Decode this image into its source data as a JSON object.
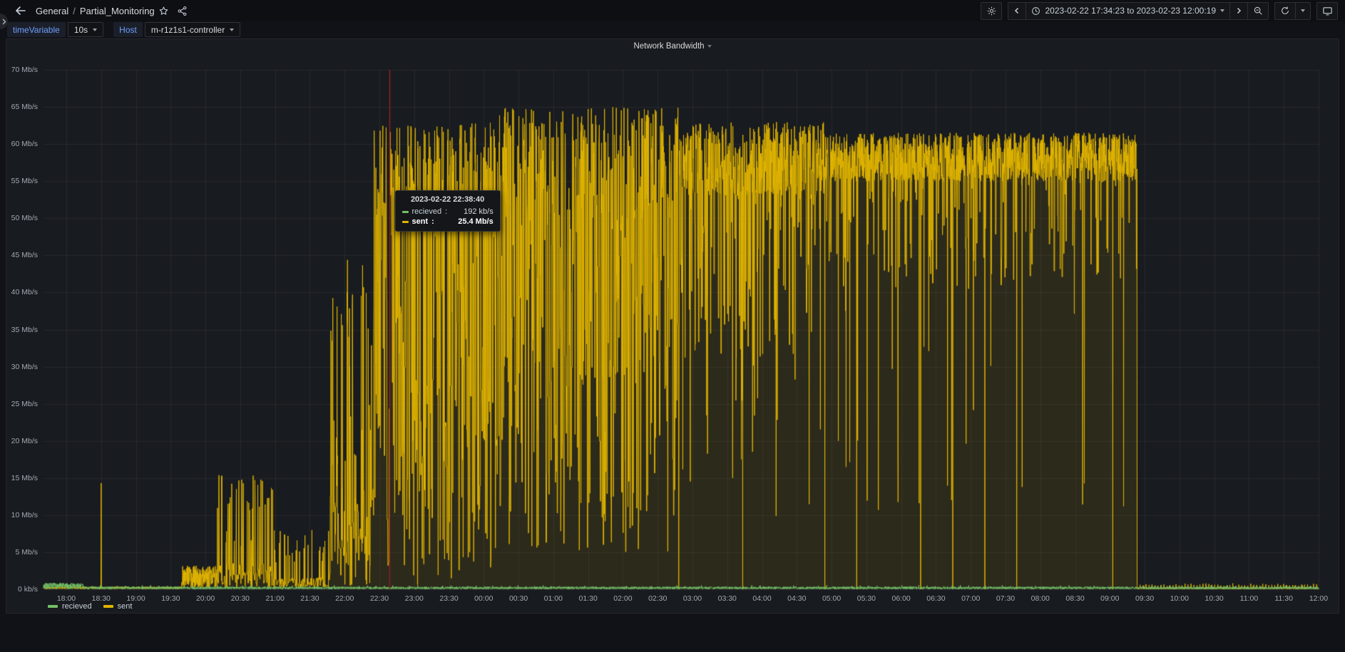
{
  "nav": {
    "breadcrumb": {
      "folder": "General",
      "separator": "/",
      "dashboard": "Partial_Monitoring"
    }
  },
  "toolbar": {
    "time_range": "2023-02-22 17:34:23 to 2023-02-23 12:00:19"
  },
  "variables": [
    {
      "label": "timeVariable",
      "value": "10s"
    },
    {
      "label": "Host",
      "value": "m-r1z1s1-controller"
    }
  ],
  "panel": {
    "title": "Network Bandwidth"
  },
  "tooltip": {
    "time": "2023-02-22 22:38:40",
    "rows": [
      {
        "name": "recieved",
        "value": "192 kb/s",
        "color": "#73bf69"
      },
      {
        "name": "sent",
        "value": "25.4 Mb/s",
        "color": "#e0b400"
      }
    ]
  },
  "legend": [
    {
      "name": "recieved",
      "color": "#73bf69"
    },
    {
      "name": "sent",
      "color": "#e0b400"
    }
  ],
  "chart_data": {
    "type": "line",
    "title": "Network Bandwidth",
    "x_start": "2023-02-22 17:34:23",
    "x_end": "2023-02-23 12:00:19",
    "sample_interval_s": 10,
    "ylabel_unit": "Mb/s",
    "ylim": [
      0,
      70
    ],
    "y_ticks": [
      "0 kb/s",
      "5 Mb/s",
      "10 Mb/s",
      "15 Mb/s",
      "20 Mb/s",
      "25 Mb/s",
      "30 Mb/s",
      "35 Mb/s",
      "40 Mb/s",
      "45 Mb/s",
      "50 Mb/s",
      "55 Mb/s",
      "60 Mb/s",
      "65 Mb/s",
      "70 Mb/s"
    ],
    "x_ticks": [
      "18:00",
      "18:30",
      "19:00",
      "19:30",
      "20:00",
      "20:30",
      "21:00",
      "21:30",
      "22:00",
      "22:30",
      "23:00",
      "23:30",
      "00:00",
      "00:30",
      "01:00",
      "01:30",
      "02:00",
      "02:30",
      "03:00",
      "03:30",
      "04:00",
      "04:30",
      "05:00",
      "05:30",
      "06:00",
      "06:30",
      "07:00",
      "07:30",
      "08:00",
      "08:30",
      "09:00",
      "09:30",
      "10:00",
      "10:30",
      "11:00",
      "11:30",
      "12:00"
    ],
    "grid": true,
    "legend_position": "bottom-left",
    "cursor": {
      "time": "2023-02-22 22:38:40",
      "hours_after_1800": 4.6444,
      "color": "#8b2226"
    },
    "series": [
      {
        "name": "recieved",
        "color": "#73bf69",
        "fill_alpha": 0.09,
        "unit": "Mb/s",
        "envelope_segments": [
          {
            "t0": -0.33,
            "t1": 0.25,
            "lo": 0.05,
            "hi": 0.85
          },
          {
            "t0": 0.25,
            "t1": 18.01,
            "lo": 0.03,
            "hi": 0.35,
            "bump_every": 0.12,
            "bump_lo": 0.3,
            "bump_hi": 0.55
          }
        ]
      },
      {
        "name": "sent",
        "color": "#e0b400",
        "fill_alpha": 0.1,
        "unit": "Mb/s",
        "envelope_segments": [
          {
            "t0": -0.33,
            "t1": 1.66,
            "lo": 0.05,
            "hi": 0.35
          },
          {
            "t0": 1.66,
            "t1": 2.17,
            "lo": 0.15,
            "hi": 3.2
          },
          {
            "t0": 2.17,
            "t1": 2.97,
            "lo": 0.2,
            "hi": 3.5,
            "p_high": 0.32,
            "high_lo": 5,
            "high_hi": 15.5
          },
          {
            "t0": 2.97,
            "t1": 3.78,
            "lo": 0.15,
            "hi": 1.6,
            "p_high": 0.17,
            "high_lo": 3.5,
            "high_hi": 8
          },
          {
            "t0": 3.78,
            "t1": 4.42,
            "lo": 0.5,
            "hi": 14,
            "p_high": 0.42,
            "high_lo": 16,
            "high_hi": 45
          },
          {
            "t0": 4.42,
            "t1": 6.2,
            "lo": 0,
            "hi": 45,
            "p_high": 0.58,
            "high_lo": 47,
            "high_hi": 63
          },
          {
            "t0": 6.2,
            "t1": 8.8,
            "lo": 5,
            "hi": 50,
            "p_high": 0.68,
            "high_lo": 50,
            "high_hi": 65
          },
          {
            "t0": 8.8,
            "t1": 10.9,
            "lo": 30,
            "hi": 54,
            "p_high": 0.82,
            "high_lo": 53,
            "high_hi": 63,
            "dip_every": 0.46,
            "p_deep": 0.03,
            "deep_lo": 8,
            "deep_hi": 35
          },
          {
            "t0": 10.9,
            "t1": 15.39,
            "lo": 40,
            "hi": 55,
            "p_high": 0.9,
            "high_lo": 55,
            "high_hi": 61.5,
            "dip_every": 0.46,
            "p_deep": 0.02,
            "deep_lo": 10,
            "deep_hi": 38
          },
          {
            "t0": 15.39,
            "t1": 18.01,
            "lo": 0.05,
            "hi": 0.18,
            "bump_every": 0.043,
            "bump_lo": 0.45,
            "bump_hi": 0.8
          }
        ],
        "spikes": [
          {
            "h": 0.5,
            "v": 14.3
          }
        ]
      }
    ]
  }
}
